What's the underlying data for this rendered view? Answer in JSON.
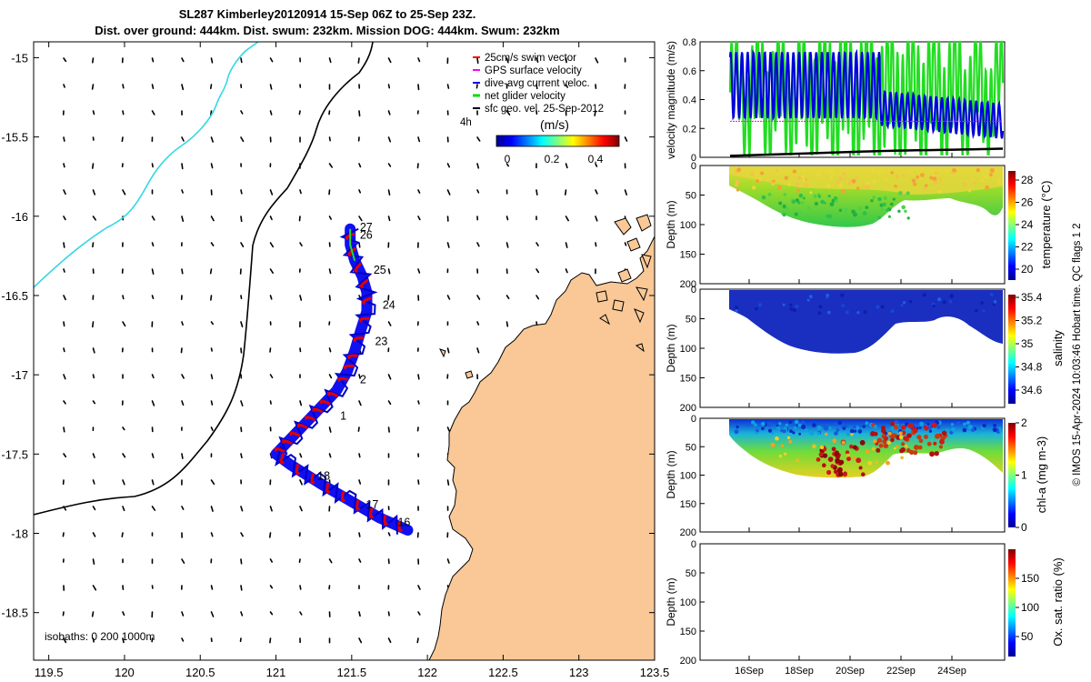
{
  "header": {
    "title_line1": "SL287 Kimberley20120914 15-Sep 06Z to 25-Sep 23Z.",
    "title_line2": "Dist. over ground: 444km. Dist. swum: 232km. Mission DOG: 444km. Swum: 232km"
  },
  "map": {
    "x_ticks": [
      119.5,
      120,
      120.5,
      121,
      121.5,
      122,
      122.5,
      123,
      123.5
    ],
    "y_ticks": [
      -15,
      -15.5,
      -16,
      -16.5,
      -17,
      -17.5,
      -18,
      -18.5
    ],
    "xlim": [
      119.4,
      123.5
    ],
    "ylim": [
      -18.8,
      -14.9
    ],
    "isobaths_label": "isobaths: 0   200  1000m",
    "legend": [
      {
        "label": "25cm/s swim vector",
        "color": "#ff0000"
      },
      {
        "label": "GPS surface velocity",
        "color": "#ff00ff"
      },
      {
        "label": "dive-avg current veloc.",
        "color": "#0000ff"
      },
      {
        "label": "net glider velocity",
        "color": "#00dd00"
      },
      {
        "label": "sfc geo. vel. 25-Sep-2012",
        "color": "#000000"
      }
    ],
    "colorbar": {
      "label": "(m/s)",
      "ticks": [
        "0",
        "0.2",
        "0.4"
      ],
      "side_label": "4h"
    },
    "day_labels": [
      {
        "day": "27",
        "lon": 121.53,
        "lat": -16.07
      },
      {
        "day": "26",
        "lon": 121.53,
        "lat": -16.12
      },
      {
        "day": "25",
        "lon": 121.62,
        "lat": -16.34
      },
      {
        "day": "24",
        "lon": 121.68,
        "lat": -16.56
      },
      {
        "day": "23",
        "lon": 121.63,
        "lat": -16.79
      },
      {
        "day": "2",
        "lon": 121.53,
        "lat": -17.03
      },
      {
        "day": "1",
        "lon": 121.4,
        "lat": -17.26
      },
      {
        "day": "18",
        "lon": 121.25,
        "lat": -17.64
      },
      {
        "day": "17",
        "lon": 121.57,
        "lat": -17.82
      },
      {
        "day": "16",
        "lon": 121.78,
        "lat": -17.93
      }
    ],
    "track": [
      [
        121.49,
        -16.08
      ],
      [
        121.49,
        -16.18
      ],
      [
        121.52,
        -16.28
      ],
      [
        121.57,
        -16.38
      ],
      [
        121.6,
        -16.48
      ],
      [
        121.6,
        -16.6
      ],
      [
        121.56,
        -16.72
      ],
      [
        121.52,
        -16.85
      ],
      [
        121.47,
        -16.98
      ],
      [
        121.4,
        -17.1
      ],
      [
        121.3,
        -17.2
      ],
      [
        121.2,
        -17.3
      ],
      [
        121.1,
        -17.4
      ],
      [
        121.0,
        -17.5
      ],
      [
        121.1,
        -17.57
      ],
      [
        121.3,
        -17.69
      ],
      [
        121.5,
        -17.8
      ],
      [
        121.68,
        -17.9
      ],
      [
        121.87,
        -17.98
      ]
    ]
  },
  "chart_data": [
    {
      "type": "line",
      "title": "",
      "ylabel": "velocity magnitude (m/s)",
      "ylim": [
        0,
        0.8
      ],
      "yticks": [
        "0",
        "0.2",
        "0.4",
        "0.6",
        "0.8"
      ],
      "series": [
        {
          "name": "net glider velocity",
          "color": "#22dd22"
        },
        {
          "name": "dive-avg current veloc.",
          "color": "#0000dd"
        },
        {
          "name": "GPS surface velocity",
          "color": "#ff00ff",
          "values": [
            0.25,
            0.25
          ]
        },
        {
          "name": "sfc geo. vel.",
          "color": "#000000",
          "values": [
            0.01,
            0.02,
            0.03,
            0.04,
            0.05,
            0.06
          ]
        }
      ]
    },
    {
      "type": "scatter",
      "ylabel": "Depth (m)",
      "clabel": "temperature (°C)",
      "yticks": [
        "0",
        "50",
        "100",
        "150",
        "200"
      ],
      "cticks": [
        "20",
        "22",
        "24",
        "26",
        "28"
      ]
    },
    {
      "type": "scatter",
      "ylabel": "Depth (m)",
      "clabel": "salinity",
      "yticks": [
        "0",
        "50",
        "100",
        "150",
        "200"
      ],
      "cticks": [
        "34.6",
        "34.8",
        "35",
        "35.2",
        "35.4"
      ]
    },
    {
      "type": "scatter",
      "ylabel": "Depth (m)",
      "clabel": "chl-a (mg m-3)",
      "yticks": [
        "0",
        "50",
        "100",
        "150",
        "200"
      ],
      "cticks": [
        "0",
        "1",
        "2"
      ]
    },
    {
      "type": "scatter",
      "ylabel": "Depth (m)",
      "clabel": "Ox. sat. ratio (%)",
      "yticks": [
        "0",
        "50",
        "100",
        "150",
        "200"
      ],
      "cticks": [
        "50",
        "100",
        "150"
      ]
    }
  ],
  "time_axis": {
    "ticks": [
      "16Sep",
      "18Sep",
      "20Sep",
      "22Sep",
      "24Sep"
    ]
  },
  "footer": {
    "side_note": "© IMOS 15-Apr-2024 10:03:46 Hobart time. QC flags 1  2"
  }
}
